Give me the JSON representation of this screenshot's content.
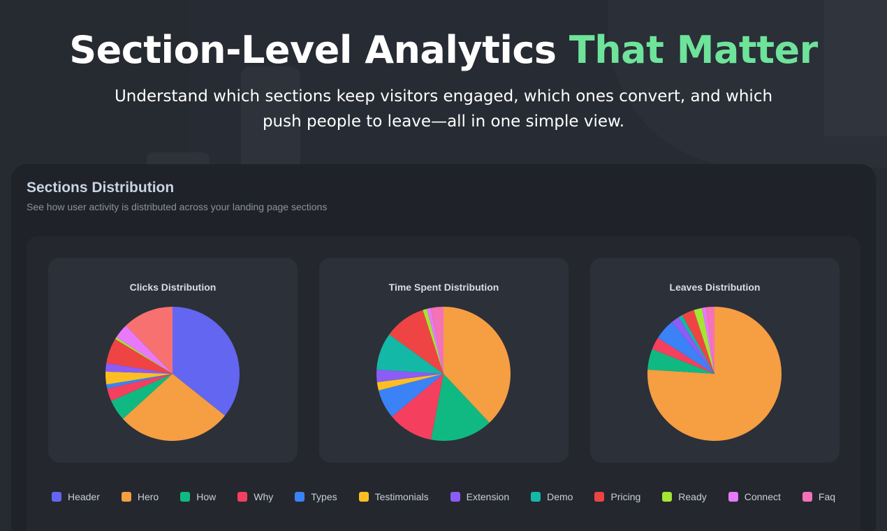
{
  "header": {
    "title_main": "Section-Level Analytics",
    "title_accent": "That Matter",
    "subtitle": "Understand which sections keep visitors engaged, which ones convert, and which push people to leave—all in one simple view."
  },
  "panel": {
    "title": "Sections Distribution",
    "subtitle": "See how user activity is distributed across your landing page sections"
  },
  "colors": {
    "accent": "#6ee39a",
    "Header": "#6366f1",
    "Hero": "#f59e42",
    "How": "#10b981",
    "Why": "#f43f5e",
    "Types": "#3b82f6",
    "Testimonials": "#fbbf24",
    "Extension": "#8b5cf6",
    "Demo": "#14b8a6",
    "Pricing": "#ef4444",
    "Ready": "#a3e635",
    "Connect": "#e879f9",
    "Faq": "#f472b6",
    "Clicks-extra": "#f87171"
  },
  "legend": [
    "Header",
    "Hero",
    "How",
    "Why",
    "Types",
    "Testimonials",
    "Extension",
    "Demo",
    "Pricing",
    "Ready",
    "Connect",
    "Faq"
  ],
  "chart_data": [
    {
      "type": "pie",
      "title": "Clicks Distribution",
      "series": [
        {
          "label": "Header",
          "value": 35
        },
        {
          "label": "Hero",
          "value": 27
        },
        {
          "label": "How",
          "value": 5
        },
        {
          "label": "Why",
          "value": 3
        },
        {
          "label": "Types",
          "value": 1
        },
        {
          "label": "Testimonials",
          "value": 3
        },
        {
          "label": "Extension",
          "value": 2
        },
        {
          "label": "Pricing",
          "value": 6
        },
        {
          "label": "Ready",
          "value": 0.5
        },
        {
          "label": "Connect",
          "value": 3.5
        },
        {
          "label": "Faq",
          "value": 12
        }
      ]
    },
    {
      "type": "pie",
      "title": "Time Spent Distribution",
      "series": [
        {
          "label": "Hero",
          "value": 38
        },
        {
          "label": "How",
          "value": 15
        },
        {
          "label": "Why",
          "value": 11
        },
        {
          "label": "Types",
          "value": 7
        },
        {
          "label": "Testimonials",
          "value": 2
        },
        {
          "label": "Extension",
          "value": 3
        },
        {
          "label": "Demo",
          "value": 9
        },
        {
          "label": "Pricing",
          "value": 10
        },
        {
          "label": "Ready",
          "value": 1
        },
        {
          "label": "Connect",
          "value": 1
        },
        {
          "label": "Faq",
          "value": 3
        }
      ]
    },
    {
      "type": "pie",
      "title": "Leaves Distribution",
      "series": [
        {
          "label": "Hero",
          "value": 76
        },
        {
          "label": "How",
          "value": 5
        },
        {
          "label": "Why",
          "value": 3
        },
        {
          "label": "Types",
          "value": 5
        },
        {
          "label": "Extension",
          "value": 2
        },
        {
          "label": "Demo",
          "value": 1
        },
        {
          "label": "Pricing",
          "value": 3
        },
        {
          "label": "Ready",
          "value": 2
        },
        {
          "label": "Connect",
          "value": 1
        },
        {
          "label": "Faq",
          "value": 2
        }
      ]
    }
  ]
}
